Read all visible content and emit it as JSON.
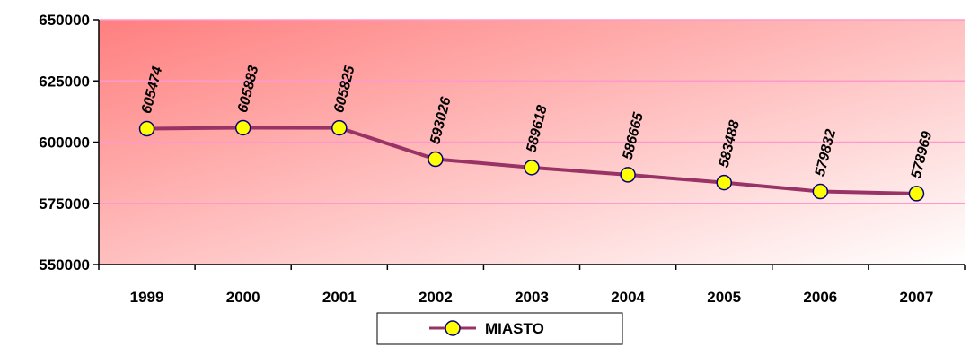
{
  "chart_data": {
    "type": "line",
    "categories": [
      "1999",
      "2000",
      "2001",
      "2002",
      "2003",
      "2004",
      "2005",
      "2006",
      "2007"
    ],
    "series": [
      {
        "name": "MIASTO",
        "values": [
          605474,
          605883,
          605825,
          593026,
          589618,
          586665,
          583488,
          579832,
          578969
        ],
        "data_labels": [
          "605474",
          "605883",
          "605825",
          "593026",
          "589618",
          "586665",
          "583488",
          "579832",
          "578969"
        ]
      }
    ],
    "yticks": [
      "650000",
      "625000",
      "600000",
      "575000",
      "550000"
    ],
    "ytick_values": [
      650000,
      625000,
      600000,
      575000,
      550000
    ],
    "ylim": [
      550000,
      650000
    ],
    "grid": true,
    "legend_position": "bottom",
    "colors": {
      "line": "#993366",
      "marker_fill": "#ffff00",
      "marker_stroke": "#000080",
      "gridline": "#ff99cc",
      "plot_gradient_start": "#ff7f7f",
      "plot_gradient_end": "#ffffff"
    }
  }
}
